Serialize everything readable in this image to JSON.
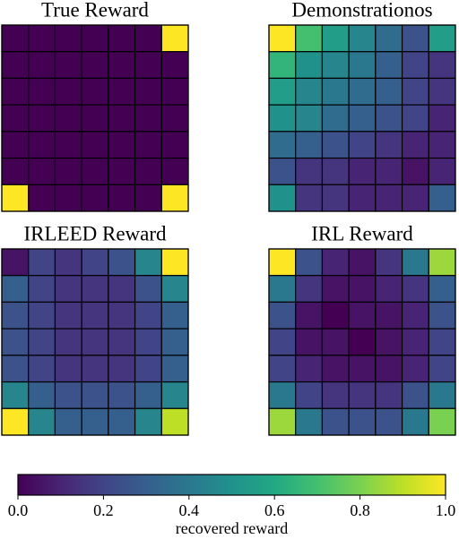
{
  "chart_data": [
    {
      "type": "heatmap",
      "title": "True Reward",
      "colormap": "viridis",
      "values": [
        [
          0,
          0,
          0,
          0,
          0,
          0,
          1
        ],
        [
          0,
          0,
          0,
          0,
          0,
          0,
          0
        ],
        [
          0,
          0,
          0,
          0,
          0,
          0,
          0
        ],
        [
          0,
          0,
          0,
          0,
          0,
          0,
          0
        ],
        [
          0,
          0,
          0,
          0,
          0,
          0,
          0
        ],
        [
          0,
          0,
          0,
          0,
          0,
          0,
          0
        ],
        [
          1,
          0,
          0,
          0,
          0,
          0,
          1
        ]
      ]
    },
    {
      "type": "heatmap",
      "title": "Demonstrationos",
      "colormap": "viridis",
      "values": [
        [
          1.0,
          0.7,
          0.55,
          0.45,
          0.35,
          0.25,
          0.55
        ],
        [
          0.65,
          0.5,
          0.45,
          0.4,
          0.3,
          0.2,
          0.15
        ],
        [
          0.55,
          0.45,
          0.4,
          0.35,
          0.3,
          0.2,
          0.15
        ],
        [
          0.5,
          0.45,
          0.35,
          0.3,
          0.25,
          0.2,
          0.1
        ],
        [
          0.35,
          0.3,
          0.25,
          0.2,
          0.15,
          0.1,
          0.1
        ],
        [
          0.25,
          0.15,
          0.15,
          0.1,
          0.1,
          0.05,
          0.1
        ],
        [
          0.5,
          0.15,
          0.15,
          0.1,
          0.1,
          0.1,
          0.3
        ]
      ]
    },
    {
      "type": "heatmap",
      "title": "IRLEED Reward",
      "colormap": "viridis",
      "values": [
        [
          0.05,
          0.2,
          0.15,
          0.2,
          0.25,
          0.45,
          1.0
        ],
        [
          0.3,
          0.2,
          0.15,
          0.15,
          0.15,
          0.25,
          0.45
        ],
        [
          0.25,
          0.2,
          0.15,
          0.15,
          0.15,
          0.2,
          0.3
        ],
        [
          0.25,
          0.2,
          0.15,
          0.15,
          0.15,
          0.2,
          0.3
        ],
        [
          0.25,
          0.2,
          0.15,
          0.15,
          0.15,
          0.2,
          0.3
        ],
        [
          0.45,
          0.3,
          0.25,
          0.25,
          0.25,
          0.3,
          0.45
        ],
        [
          1.0,
          0.45,
          0.3,
          0.3,
          0.3,
          0.45,
          0.9
        ]
      ]
    },
    {
      "type": "heatmap",
      "title": "IRL Reward",
      "colormap": "viridis",
      "values": [
        [
          1.0,
          0.25,
          0.1,
          0.05,
          0.15,
          0.4,
          0.85
        ],
        [
          0.4,
          0.15,
          0.05,
          0.05,
          0.1,
          0.15,
          0.3
        ],
        [
          0.25,
          0.05,
          0.0,
          0.05,
          0.05,
          0.1,
          0.25
        ],
        [
          0.2,
          0.05,
          0.05,
          0.0,
          0.05,
          0.1,
          0.2
        ],
        [
          0.2,
          0.1,
          0.05,
          0.05,
          0.05,
          0.1,
          0.2
        ],
        [
          0.4,
          0.2,
          0.15,
          0.15,
          0.15,
          0.25,
          0.4
        ],
        [
          0.85,
          0.4,
          0.25,
          0.25,
          0.25,
          0.4,
          0.8
        ]
      ]
    },
    {
      "type": "colorbar",
      "colormap": "viridis",
      "xlim": [
        0,
        1
      ],
      "label": "recovered reward",
      "xticks": [
        {
          "value": 0,
          "label": "0.0"
        },
        {
          "value": 0.2,
          "label": "0.2"
        },
        {
          "value": 0.4,
          "label": "0.4"
        },
        {
          "value": 0.6,
          "label": "0.6"
        },
        {
          "value": 0.8,
          "label": "0.8"
        },
        {
          "value": 1,
          "label": "1.0"
        }
      ]
    }
  ]
}
